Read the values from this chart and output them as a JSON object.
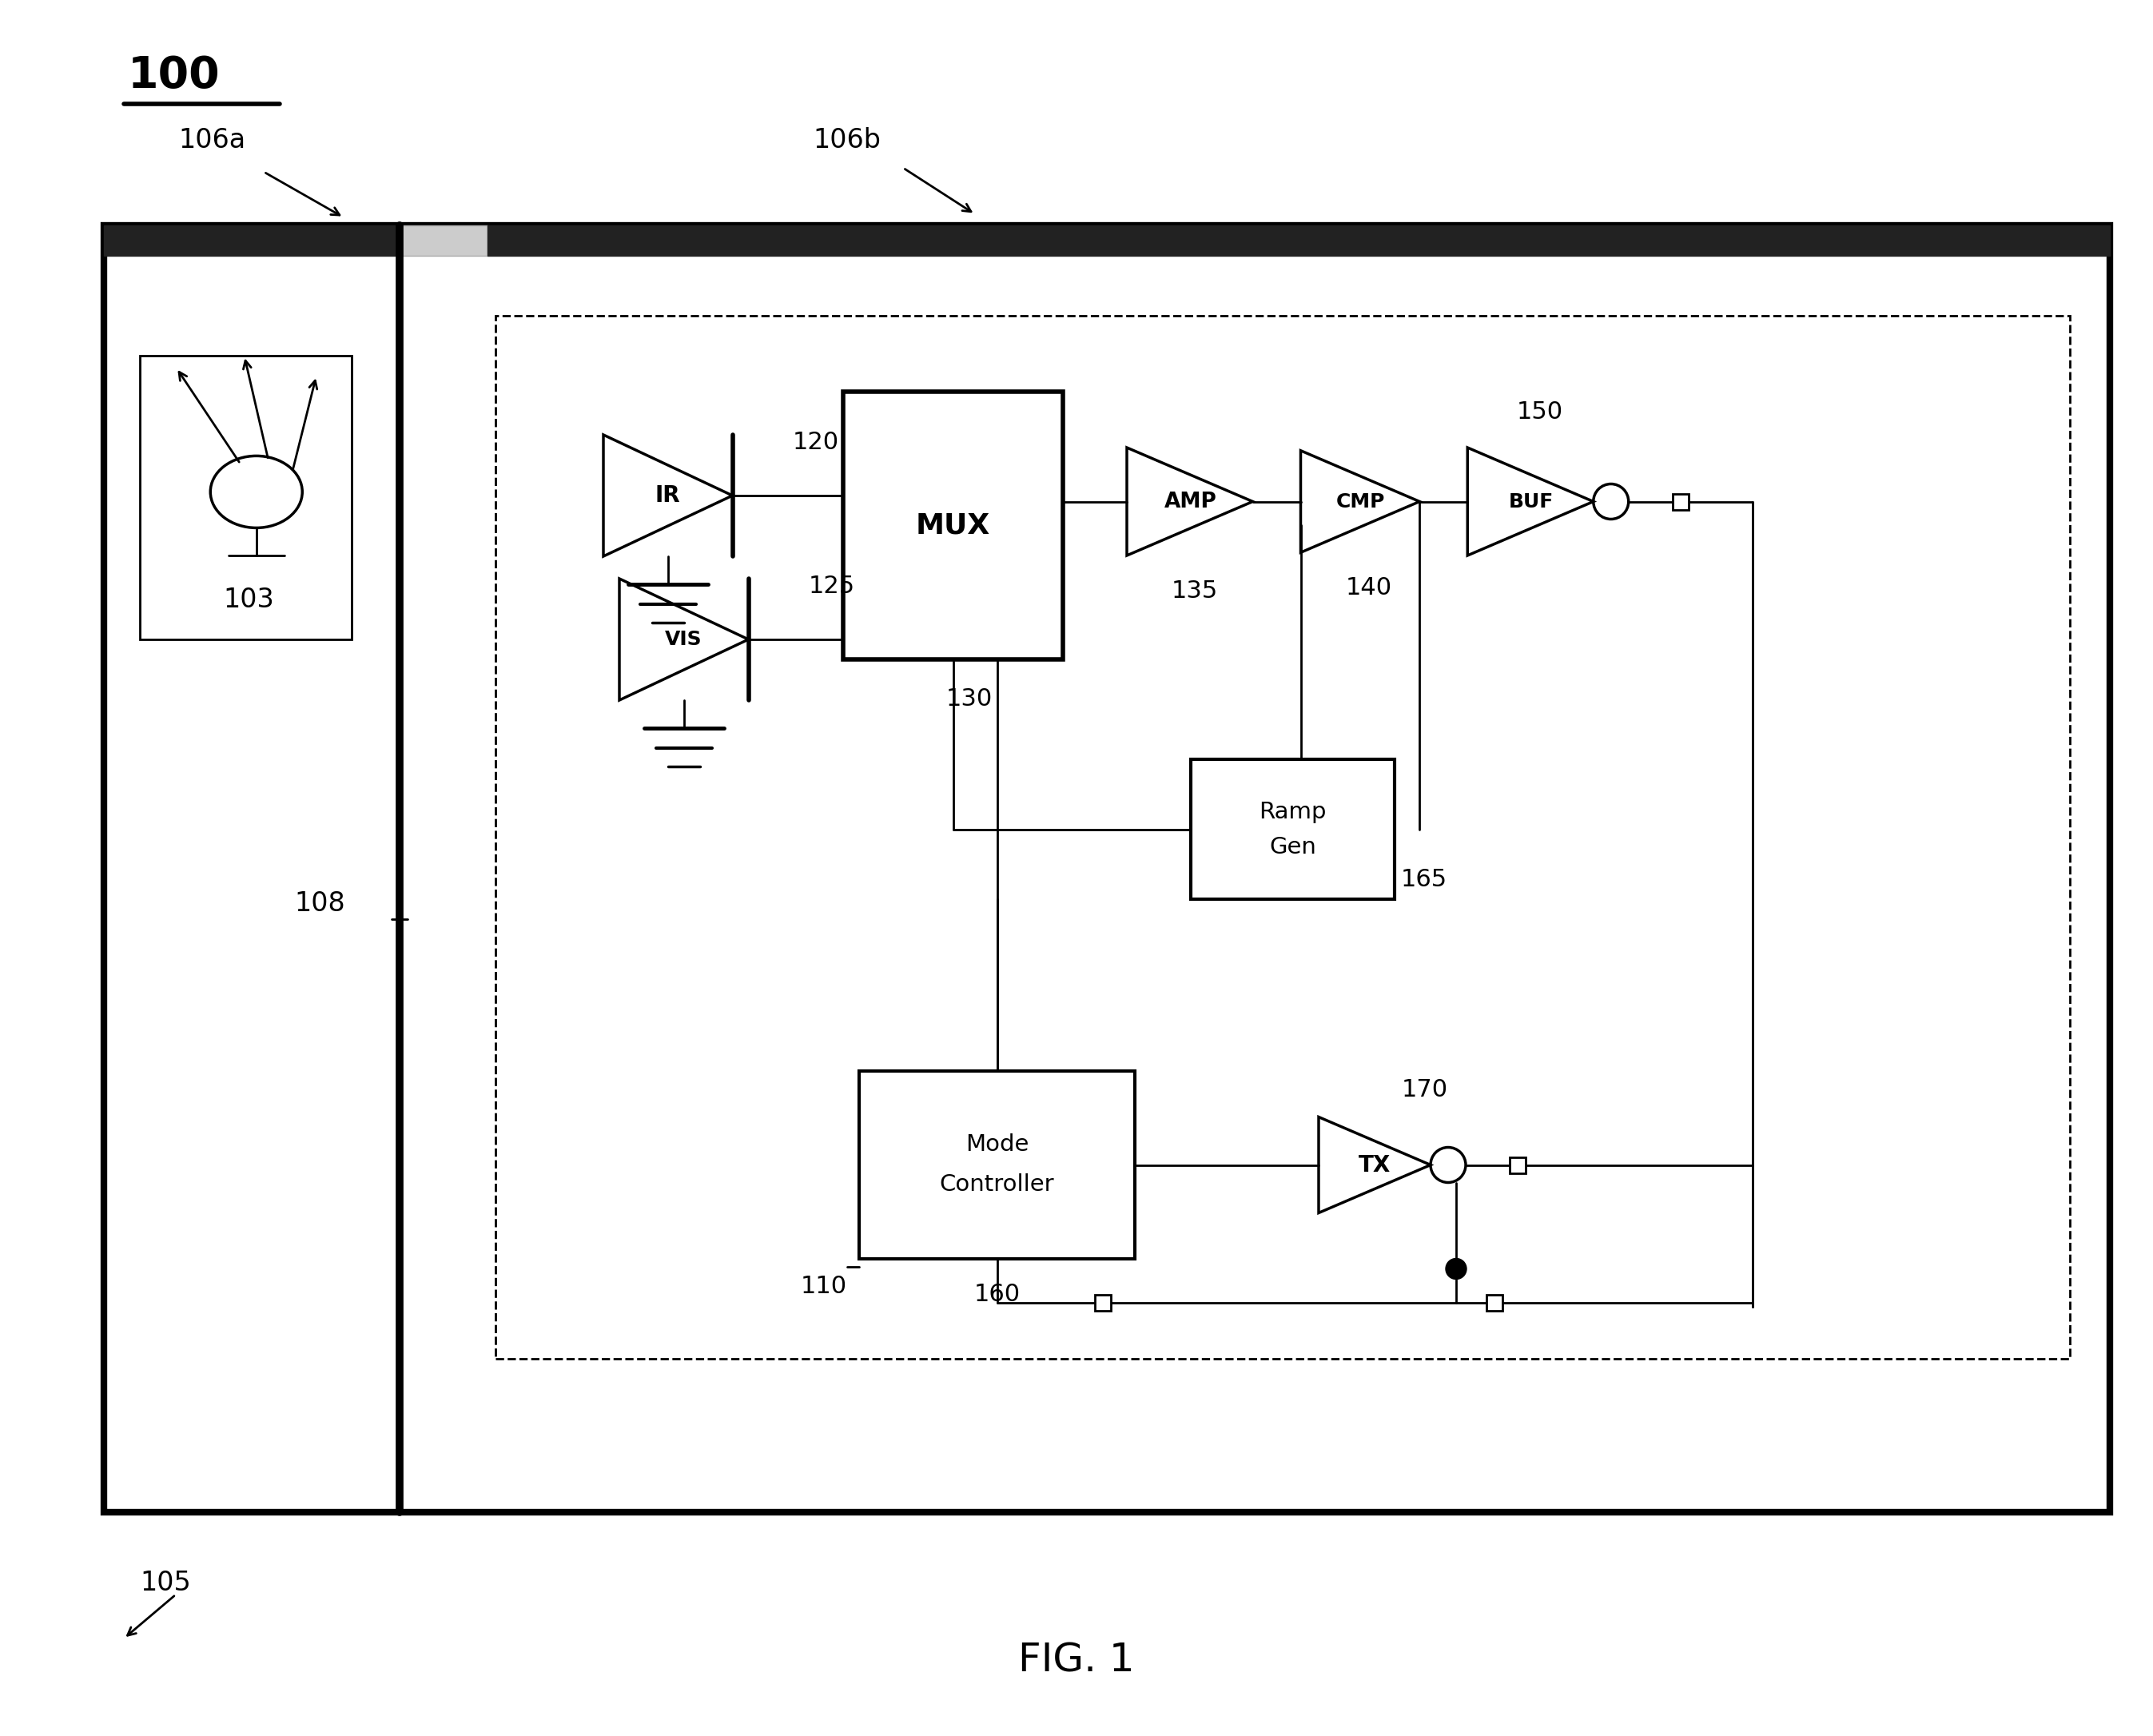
{
  "fig_label": "FIG. 1",
  "ref_100": "100",
  "ref_105": "105",
  "ref_106a": "106a",
  "ref_106b": "106b",
  "ref_103": "103",
  "ref_108": "108",
  "ref_110": "110",
  "ref_120": "120",
  "ref_125": "125",
  "ref_130": "130",
  "ref_135": "135",
  "ref_140": "140",
  "ref_150": "150",
  "ref_160": "160",
  "ref_165": "165",
  "ref_170": "170",
  "bg_color": "#ffffff",
  "line_color": "#000000"
}
